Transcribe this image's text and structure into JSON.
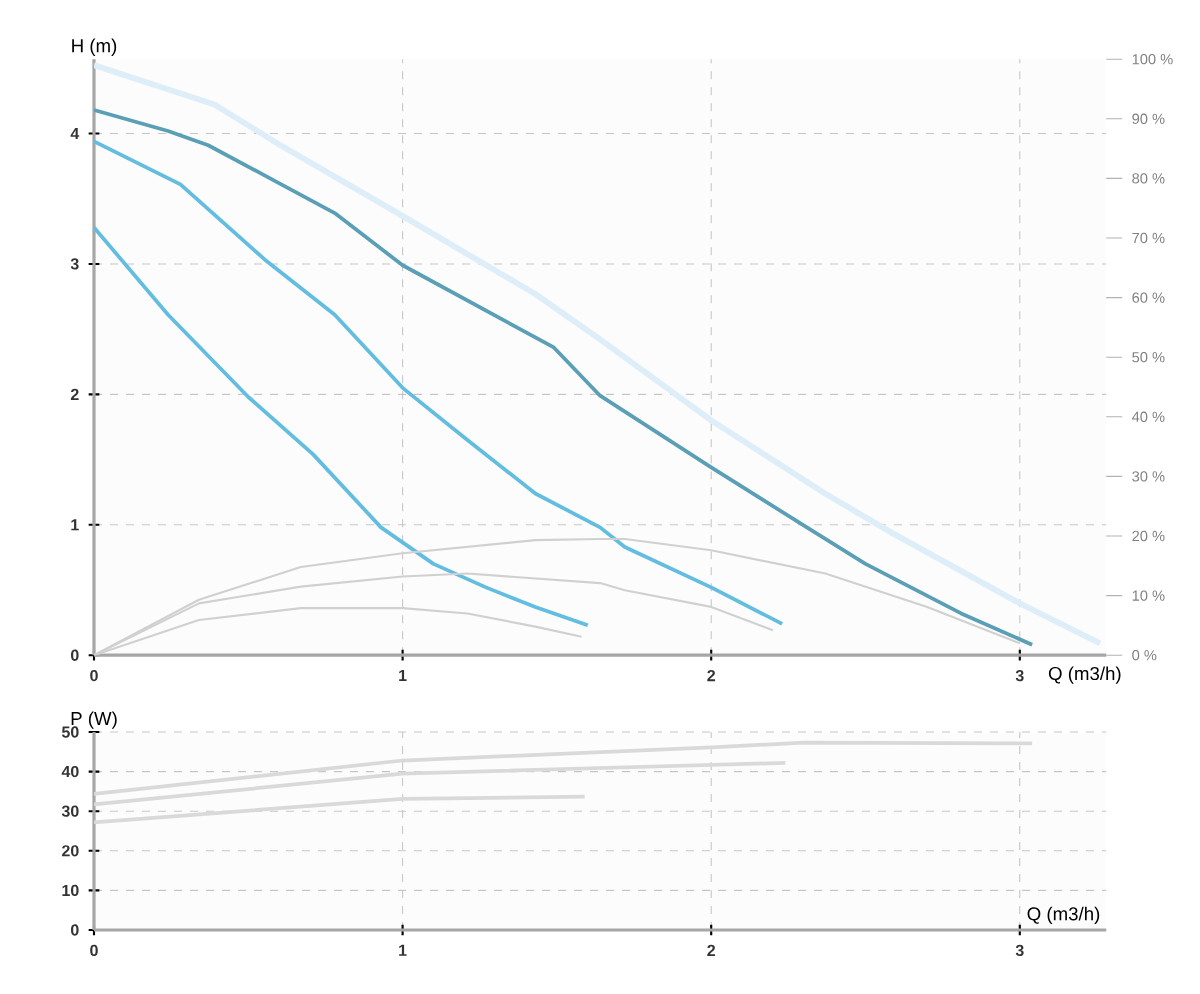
{
  "chart_data": [
    {
      "type": "line",
      "xlabel": "Q (m3/h)",
      "ylabel": "H (m)",
      "xlim": [
        0,
        3.28
      ],
      "ylim": [
        0,
        4.57
      ],
      "xticks": [
        0,
        1,
        2,
        3
      ],
      "yticks": [
        0,
        1,
        2,
        3,
        4
      ],
      "y2lim": [
        0,
        100
      ],
      "y2ticks": [
        {
          "value": 0,
          "label": "0 %"
        },
        {
          "value": 10,
          "label": "10 %"
        },
        {
          "value": 20,
          "label": "20 %"
        },
        {
          "value": 30,
          "label": "30 %"
        },
        {
          "value": 40,
          "label": "40 %"
        },
        {
          "value": 50,
          "label": "50 %"
        },
        {
          "value": 60,
          "label": "60 %"
        },
        {
          "value": 70,
          "label": "70 %"
        },
        {
          "value": 80,
          "label": "80 %"
        },
        {
          "value": 90,
          "label": "90 %"
        },
        {
          "value": 100,
          "label": "100 %"
        }
      ],
      "grid": true,
      "series": [
        {
          "color": "#ddeef8",
          "axis": "y2",
          "x": [
            0,
            0.39,
            0.6,
            0.99,
            1.43,
            1.64,
            2,
            2.37,
            2.59,
            3,
            3.26
          ],
          "values": [
            99,
            92.4,
            85.7,
            74,
            60.6,
            53,
            39.4,
            27.1,
            20.4,
            8.7,
            2
          ]
        },
        {
          "color": "#d0d0d0",
          "axis": "y2",
          "x": [
            0,
            0.34,
            0.67,
            1,
            1.43,
            1.64,
            1.72,
            2,
            2.37,
            2.7,
            3
          ],
          "values": [
            0,
            9.3,
            14.8,
            17.1,
            19.3,
            19.5,
            19.5,
            17.6,
            13.7,
            8.1,
            2
          ]
        },
        {
          "color": "#d0d0d0",
          "axis": "y2",
          "x": [
            0,
            0.34,
            0.67,
            1,
            1.21,
            1.64,
            1.72,
            2,
            2.2
          ],
          "values": [
            0,
            8.7,
            11.5,
            13.2,
            13.7,
            12.1,
            10.9,
            8.1,
            4.2
          ]
        },
        {
          "color": "#d0d0d0",
          "axis": "y2",
          "x": [
            0,
            0.34,
            0.67,
            1,
            1.21,
            1.43,
            1.58
          ],
          "values": [
            0,
            5.9,
            7.9,
            7.9,
            7,
            4.8,
            3.1
          ]
        },
        {
          "color": "#5a9fb5",
          "x": [
            0,
            0.24,
            0.37,
            0.56,
            0.78,
            1,
            1.49,
            1.64,
            2,
            2.31,
            2.5,
            2.81,
            3.04
          ],
          "values": [
            4.18,
            4.02,
            3.91,
            3.67,
            3.39,
            2.99,
            2.36,
            1.99,
            1.44,
            0.98,
            0.7,
            0.32,
            0.08
          ]
        },
        {
          "color": "#62bde0",
          "x": [
            0,
            0.28,
            0.56,
            0.78,
            1,
            1.21,
            1.43,
            1.64,
            1.72,
            2,
            2.23
          ],
          "values": [
            3.94,
            3.61,
            3.02,
            2.61,
            2.05,
            1.65,
            1.24,
            0.98,
            0.83,
            0.52,
            0.24
          ]
        },
        {
          "color": "#62bde0",
          "x": [
            0,
            0.24,
            0.5,
            0.71,
            0.93,
            1.1,
            1.27,
            1.43,
            1.6
          ],
          "values": [
            3.28,
            2.61,
            1.98,
            1.54,
            0.98,
            0.7,
            0.52,
            0.37,
            0.23
          ]
        }
      ]
    },
    {
      "type": "line",
      "xlabel": "Q (m3/h)",
      "ylabel": "P (W)",
      "xlim": [
        0,
        3.28
      ],
      "ylim": [
        0,
        50
      ],
      "xticks": [
        0,
        1,
        2,
        3
      ],
      "yticks": [
        0,
        10,
        20,
        30,
        40,
        50
      ],
      "grid": true,
      "series": [
        {
          "color": "#d9d9d9",
          "x": [
            0,
            1,
            2,
            2.3,
            3.04
          ],
          "values": [
            34.4,
            42.8,
            46.1,
            47.3,
            47.1
          ]
        },
        {
          "color": "#d9d9d9",
          "x": [
            0,
            1,
            2.24
          ],
          "values": [
            31.7,
            39.5,
            42.2
          ]
        },
        {
          "color": "#d9d9d9",
          "x": [
            0,
            1,
            1.59
          ],
          "values": [
            27.2,
            33.1,
            33.7
          ]
        }
      ]
    }
  ]
}
